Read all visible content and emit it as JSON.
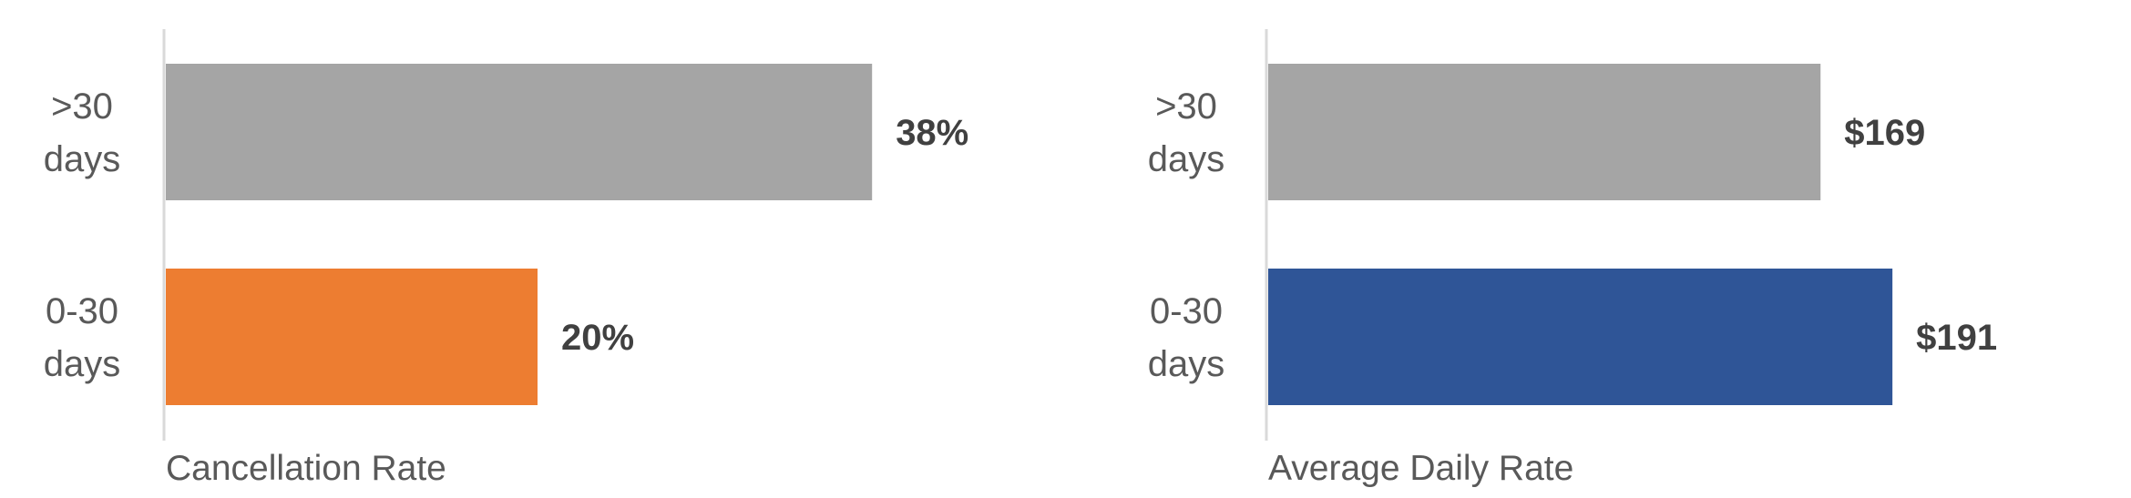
{
  "chart_data": [
    {
      "type": "bar",
      "orientation": "horizontal",
      "categories": [
        ">30 days",
        "0-30 days"
      ],
      "category_lines": [
        [
          ">30",
          "days"
        ],
        [
          "0-30",
          "days"
        ]
      ],
      "values": [
        38,
        20
      ],
      "value_labels": [
        "38%",
        "20%"
      ],
      "bar_colors": [
        "#a5a5a5",
        "#ed7d31"
      ],
      "xlabel": "Cancellation Rate",
      "unit": "%",
      "xlim": [
        0,
        45
      ],
      "grid": false,
      "legend": "none"
    },
    {
      "type": "bar",
      "orientation": "horizontal",
      "categories": [
        ">30 days",
        "0-30 days"
      ],
      "category_lines": [
        [
          ">30",
          "days"
        ],
        [
          "0-30",
          "days"
        ]
      ],
      "values": [
        169,
        191
      ],
      "value_labels": [
        "$169",
        "$191"
      ],
      "bar_colors": [
        "#a5a5a5",
        "#2f5597"
      ],
      "xlabel": "Average Daily Rate",
      "unit": "$",
      "xlim": [
        0,
        218
      ],
      "grid": false,
      "legend": "none"
    }
  ]
}
